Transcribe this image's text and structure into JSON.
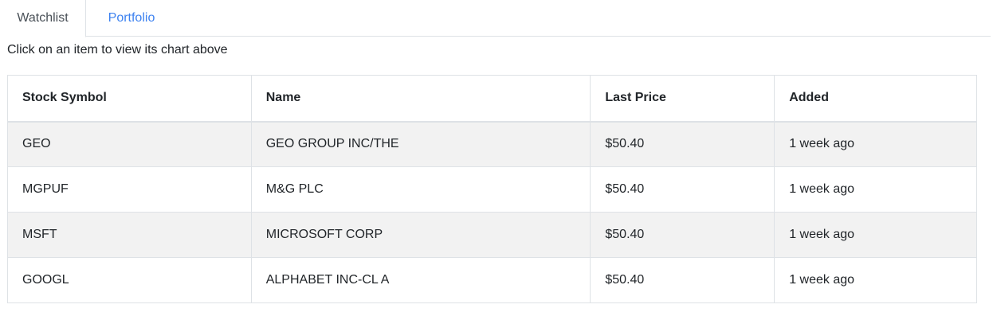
{
  "tabs": {
    "watchlist": "Watchlist",
    "portfolio": "Portfolio"
  },
  "hint": "Click on an item to view its chart above",
  "table": {
    "headers": [
      "Stock Symbol",
      "Name",
      "Last Price",
      "Added"
    ],
    "rows": [
      [
        "GEO",
        "GEO GROUP INC/THE",
        "$50.40",
        "1 week ago"
      ],
      [
        "MGPUF",
        "M&G PLC",
        "$50.40",
        "1 week ago"
      ],
      [
        "MSFT",
        "MICROSOFT CORP",
        "$50.40",
        "1 week ago"
      ],
      [
        "GOOGL",
        "ALPHABET INC-CL A",
        "$50.40",
        "1 week ago"
      ]
    ]
  },
  "colors": {
    "link": "#3d82f0",
    "row_stripe": "#f2f2f2",
    "border": "#dee2e6"
  }
}
